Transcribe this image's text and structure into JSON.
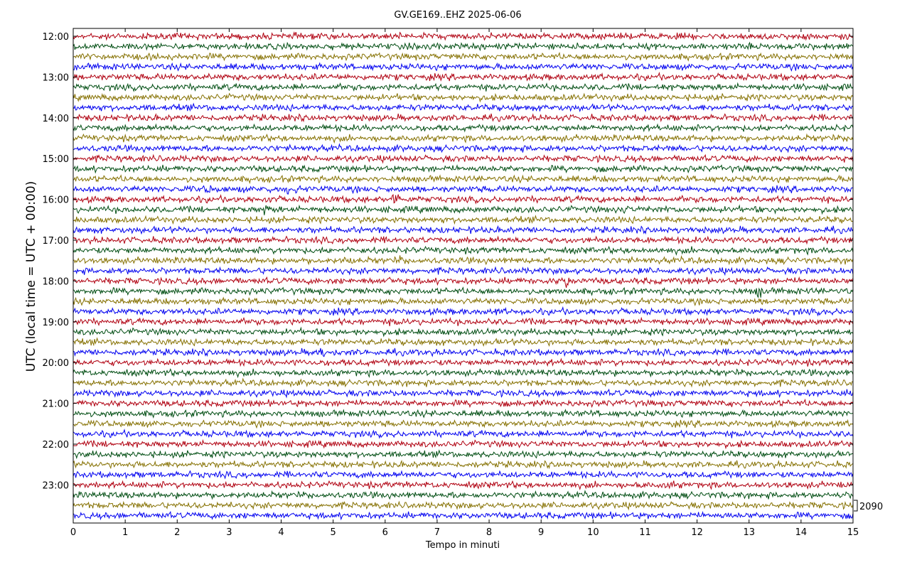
{
  "chart_data": {
    "type": "line",
    "title": "GV.GE169..EHZ 2025-06-06",
    "xlabel": "Tempo in minuti",
    "ylabel": "UTC (local time = UTC + 00:00)",
    "xlim": [
      0,
      15
    ],
    "x_ticks": [
      "0",
      "1",
      "2",
      "3",
      "4",
      "5",
      "6",
      "7",
      "8",
      "9",
      "10",
      "11",
      "12",
      "13",
      "14",
      "15"
    ],
    "y_ticks": [
      "12:00",
      "13:00",
      "14:00",
      "15:00",
      "16:00",
      "17:00",
      "18:00",
      "19:00",
      "20:00",
      "21:00",
      "22:00",
      "23:00"
    ],
    "trace_start": "12:00",
    "trace_interval_minutes": 15,
    "trace_count": 48,
    "color_cycle": [
      "#b00010",
      "#004d12",
      "#857000",
      "#0000f0"
    ],
    "scale_label": "2090",
    "grid": false,
    "events": [
      {
        "trace": 15,
        "minute": 4.2,
        "amplitude": 3.0
      },
      {
        "trace": 15,
        "minute": 2.6,
        "amplitude": 1.8
      },
      {
        "trace": 15,
        "minute": 3.7,
        "amplitude": 1.6
      },
      {
        "trace": 16,
        "minute": 6.2,
        "amplitude": 2.8
      },
      {
        "trace": 16,
        "minute": 3.7,
        "amplitude": 1.6
      },
      {
        "trace": 17,
        "minute": 3.7,
        "amplitude": 2.4
      },
      {
        "trace": 17,
        "minute": 10.6,
        "amplitude": 1.8
      },
      {
        "trace": 17,
        "minute": 11.4,
        "amplitude": 1.5
      },
      {
        "trace": 22,
        "minute": 5.3,
        "amplitude": 1.8
      },
      {
        "trace": 22,
        "minute": 6.3,
        "amplitude": 1.6
      },
      {
        "trace": 24,
        "minute": 9.5,
        "amplitude": 2.8
      },
      {
        "trace": 24,
        "minute": 6.1,
        "amplitude": 1.6
      },
      {
        "trace": 25,
        "minute": 13.2,
        "amplitude": 2.2
      },
      {
        "trace": 27,
        "minute": 8.1,
        "amplitude": 1.5
      },
      {
        "trace": 28,
        "minute": 6.2,
        "amplitude": 1.5
      },
      {
        "trace": 28,
        "minute": 10.3,
        "amplitude": 1.4
      },
      {
        "trace": 31,
        "minute": 4.75,
        "amplitude": 2.4
      },
      {
        "trace": 44,
        "minute": 11.5,
        "amplitude": 1.6
      },
      {
        "trace": 44,
        "minute": 10.9,
        "amplitude": 1.3
      }
    ]
  }
}
